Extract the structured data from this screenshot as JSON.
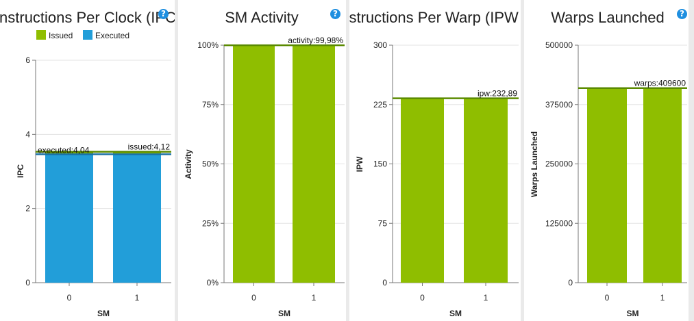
{
  "help_glyph": "?",
  "icons": {
    "help": "help-icon"
  },
  "colors": {
    "issued": "#8fbe00",
    "executed": "#229ed9",
    "issued_line": "#5a8a00",
    "executed_line": "#1a6fa3",
    "help": "#1f8fe0"
  },
  "chart_data": [
    {
      "type": "bar",
      "title": "nstructions Per Clock (IPC",
      "xlabel": "SM",
      "ylabel": "IPC",
      "categories": [
        "0",
        "1"
      ],
      "yticks": [
        "0",
        "2",
        "4",
        "6"
      ],
      "ylim": [
        0,
        7
      ],
      "grid": true,
      "legend": {
        "position": "top",
        "entries": [
          "Issued",
          "Executed"
        ]
      },
      "series": [
        {
          "name": "Issued",
          "values": [
            4.12,
            4.12
          ],
          "color": "#8fbe00"
        },
        {
          "name": "Executed",
          "values": [
            4.04,
            4.04
          ],
          "color": "#229ed9"
        }
      ],
      "reference_lines": [
        {
          "value": 4.12,
          "label": "issued:4,12",
          "color": "#5a8a00",
          "label_side": "right"
        },
        {
          "value": 4.04,
          "label": "executed:4,04",
          "color": "#1a6fa3",
          "label_side": "left"
        }
      ]
    },
    {
      "type": "bar",
      "title": "SM Activity",
      "xlabel": "SM",
      "ylabel": "Activity",
      "categories": [
        "0",
        "1"
      ],
      "yticks": [
        "0%",
        "25%",
        "50%",
        "75%",
        "100%"
      ],
      "ylim": [
        0,
        100
      ],
      "grid": true,
      "series": [
        {
          "values": [
            99.98,
            99.98
          ],
          "color": "#8fbe00"
        }
      ],
      "reference_lines": [
        {
          "value": 99.98,
          "label": "activity:99,98%",
          "color": "#5a8a00",
          "label_side": "right"
        }
      ]
    },
    {
      "type": "bar",
      "title": "nstructions Per Warp (IPW",
      "xlabel": "SM",
      "ylabel": "IPW",
      "categories": [
        "0",
        "1"
      ],
      "yticks": [
        "0",
        "75",
        "150",
        "225",
        "300"
      ],
      "ylim": [
        0,
        300
      ],
      "grid": true,
      "series": [
        {
          "values": [
            232.89,
            232.89
          ],
          "color": "#8fbe00"
        }
      ],
      "reference_lines": [
        {
          "value": 232.89,
          "label": "ipw:232,89",
          "color": "#5a8a00",
          "label_side": "right"
        }
      ]
    },
    {
      "type": "bar",
      "title": "Warps Launched",
      "xlabel": "SM",
      "ylabel": "Warps Launched",
      "categories": [
        "0",
        "1"
      ],
      "yticks": [
        "0",
        "125000",
        "250000",
        "375000",
        "500000"
      ],
      "ylim": [
        0,
        500000
      ],
      "grid": true,
      "series": [
        {
          "values": [
            409600,
            409600
          ],
          "color": "#8fbe00"
        }
      ],
      "reference_lines": [
        {
          "value": 409600,
          "label": "warps:409600",
          "color": "#5a8a00",
          "label_side": "right"
        }
      ]
    }
  ]
}
